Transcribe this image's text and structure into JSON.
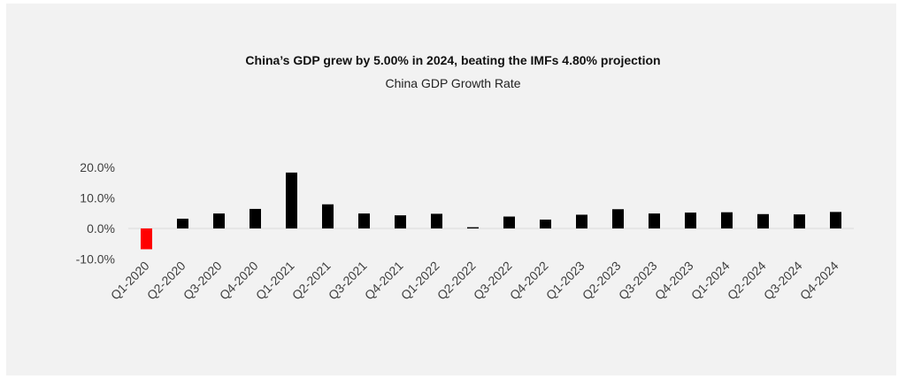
{
  "chart_data": {
    "type": "bar",
    "title": "China’s GDP grew by 5.00% in 2024, beating the IMFs 4.80% projection",
    "subtitle": "China GDP Growth Rate",
    "xlabel": "",
    "ylabel": "",
    "categories": [
      "Q1-2020",
      "Q2-2020",
      "Q3-2020",
      "Q4-2020",
      "Q1-2021",
      "Q2-2021",
      "Q3-2021",
      "Q4-2021",
      "Q1-2022",
      "Q2-2022",
      "Q3-2022",
      "Q4-2022",
      "Q1-2023",
      "Q2-2023",
      "Q3-2023",
      "Q4-2023",
      "Q1-2024",
      "Q2-2024",
      "Q3-2024",
      "Q4-2024"
    ],
    "values": [
      -6.8,
      3.2,
      4.9,
      6.4,
      18.3,
      7.9,
      4.9,
      4.3,
      4.8,
      0.4,
      3.9,
      2.9,
      4.5,
      6.3,
      4.9,
      5.2,
      5.3,
      4.7,
      4.6,
      5.4
    ],
    "ylim": [
      -10,
      20
    ],
    "yticks": [
      20,
      10,
      0,
      -10
    ],
    "ytick_labels": [
      "20.0%",
      "10.0%",
      "0.0%",
      "-10.0%"
    ],
    "colors": {
      "positive": "#000000",
      "negative": "#ff0000",
      "axis": "#d9d9d9"
    },
    "grid": false,
    "legend": "none"
  }
}
